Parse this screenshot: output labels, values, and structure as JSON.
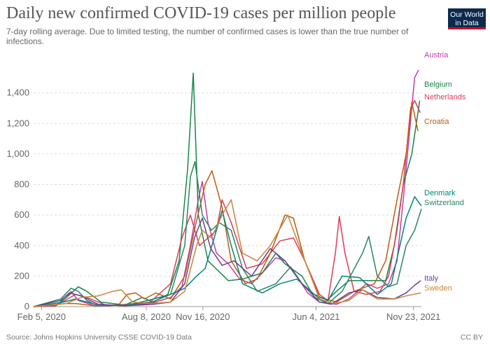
{
  "header": {
    "title": "Daily new confirmed COVID-19 cases per million people",
    "subtitle": "7-day rolling average. Due to limited testing, the number of confirmed cases is lower than the true number of infections.",
    "logo_line1": "Our World",
    "logo_line2": "in Data"
  },
  "footer": {
    "source": "Source: Johns Hopkins University CSSE COVID-19 Data",
    "license": "CC BY"
  },
  "chart_data": {
    "type": "line",
    "title": "Daily new confirmed COVID-19 cases per million people",
    "xlabel": "",
    "ylabel": "",
    "x_range": [
      "2020-01-22",
      "2021-12-07"
    ],
    "ylim": [
      0,
      1550
    ],
    "y_ticks": [
      0,
      200,
      400,
      600,
      800,
      1000,
      1200,
      1400
    ],
    "y_tick_labels": [
      "0",
      "200",
      "400",
      "600",
      "800",
      "1,000",
      "1,200",
      "1,400"
    ],
    "x_ticks": [
      "2020-02-05",
      "2020-08-08",
      "2020-11-16",
      "2021-06-04",
      "2021-11-23"
    ],
    "x_tick_labels": [
      "Feb 5, 2020",
      "Aug 8, 2020",
      "Nov 16, 2020",
      "Jun 4, 2021",
      "Nov 23, 2021"
    ],
    "grid": "horizontal dashed",
    "legend": "right, labels at line ends",
    "series": [
      {
        "name": "Austria",
        "color": "#c53ba7",
        "points": [
          [
            "2020-01-22",
            0
          ],
          [
            "2020-03-01",
            5
          ],
          [
            "2020-03-20",
            60
          ],
          [
            "2020-03-28",
            100
          ],
          [
            "2020-04-10",
            40
          ],
          [
            "2020-05-10",
            5
          ],
          [
            "2020-07-01",
            10
          ],
          [
            "2020-08-15",
            20
          ],
          [
            "2020-09-20",
            60
          ],
          [
            "2020-10-10",
            130
          ],
          [
            "2020-10-25",
            400
          ],
          [
            "2020-11-08",
            700
          ],
          [
            "2020-11-15",
            820
          ],
          [
            "2020-11-25",
            550
          ],
          [
            "2020-12-10",
            350
          ],
          [
            "2020-12-31",
            280
          ],
          [
            "2021-01-20",
            180
          ],
          [
            "2021-02-10",
            150
          ],
          [
            "2021-03-01",
            220
          ],
          [
            "2021-03-25",
            320
          ],
          [
            "2021-04-10",
            300
          ],
          [
            "2021-05-01",
            200
          ],
          [
            "2021-05-20",
            90
          ],
          [
            "2021-06-10",
            30
          ],
          [
            "2021-07-10",
            15
          ],
          [
            "2021-08-01",
            50
          ],
          [
            "2021-09-01",
            150
          ],
          [
            "2021-09-20",
            120
          ],
          [
            "2021-10-10",
            150
          ],
          [
            "2021-10-25",
            300
          ],
          [
            "2021-11-05",
            700
          ],
          [
            "2021-11-15",
            1100
          ],
          [
            "2021-11-25",
            1500
          ],
          [
            "2021-12-02",
            1550
          ]
        ]
      },
      {
        "name": "Belgium",
        "color": "#18864a",
        "points": [
          [
            "2020-01-22",
            0
          ],
          [
            "2020-03-01",
            5
          ],
          [
            "2020-03-20",
            60
          ],
          [
            "2020-04-10",
            130
          ],
          [
            "2020-04-25",
            100
          ],
          [
            "2020-05-20",
            30
          ],
          [
            "2020-07-01",
            10
          ],
          [
            "2020-08-01",
            60
          ],
          [
            "2020-08-20",
            30
          ],
          [
            "2020-09-15",
            80
          ],
          [
            "2020-10-05",
            300
          ],
          [
            "2020-10-20",
            900
          ],
          [
            "2020-10-30",
            1530
          ],
          [
            "2020-11-08",
            600
          ],
          [
            "2020-11-25",
            300
          ],
          [
            "2020-12-31",
            170
          ],
          [
            "2021-01-25",
            180
          ],
          [
            "2021-03-01",
            220
          ],
          [
            "2021-03-25",
            350
          ],
          [
            "2021-04-10",
            280
          ],
          [
            "2021-05-10",
            200
          ],
          [
            "2021-06-01",
            60
          ],
          [
            "2021-06-20",
            30
          ],
          [
            "2021-07-10",
            100
          ],
          [
            "2021-08-01",
            170
          ],
          [
            "2021-09-01",
            170
          ],
          [
            "2021-10-05",
            170
          ],
          [
            "2021-10-20",
            400
          ],
          [
            "2021-11-05",
            800
          ],
          [
            "2021-11-20",
            1000
          ],
          [
            "2021-12-04",
            1350
          ]
        ]
      },
      {
        "name": "Netherlands",
        "color": "#dc3c58",
        "points": [
          [
            "2020-01-22",
            0
          ],
          [
            "2020-03-01",
            5
          ],
          [
            "2020-04-05",
            80
          ],
          [
            "2020-04-25",
            60
          ],
          [
            "2020-06-01",
            5
          ],
          [
            "2020-07-20",
            20
          ],
          [
            "2020-08-15",
            30
          ],
          [
            "2020-09-20",
            150
          ],
          [
            "2020-10-10",
            450
          ],
          [
            "2020-10-25",
            600
          ],
          [
            "2020-11-10",
            400
          ],
          [
            "2020-12-10",
            500
          ],
          [
            "2020-12-20",
            700
          ],
          [
            "2021-01-05",
            550
          ],
          [
            "2021-02-01",
            250
          ],
          [
            "2021-03-01",
            280
          ],
          [
            "2021-04-01",
            430
          ],
          [
            "2021-04-25",
            450
          ],
          [
            "2021-05-15",
            300
          ],
          [
            "2021-06-10",
            80
          ],
          [
            "2021-06-25",
            40
          ],
          [
            "2021-07-08",
            350
          ],
          [
            "2021-07-15",
            590
          ],
          [
            "2021-07-25",
            350
          ],
          [
            "2021-08-10",
            100
          ],
          [
            "2021-09-01",
            80
          ],
          [
            "2021-09-25",
            100
          ],
          [
            "2021-10-10",
            200
          ],
          [
            "2021-10-25",
            500
          ],
          [
            "2021-11-05",
            800
          ],
          [
            "2021-11-18",
            1300
          ],
          [
            "2021-11-25",
            1350
          ],
          [
            "2021-12-05",
            1270
          ]
        ]
      },
      {
        "name": "Croatia",
        "color": "#c15a0d",
        "points": [
          [
            "2020-01-22",
            0
          ],
          [
            "2020-03-20",
            20
          ],
          [
            "2020-04-05",
            20
          ],
          [
            "2020-05-10",
            5
          ],
          [
            "2020-06-20",
            10
          ],
          [
            "2020-07-05",
            80
          ],
          [
            "2020-07-20",
            90
          ],
          [
            "2020-08-05",
            50
          ],
          [
            "2020-08-25",
            90
          ],
          [
            "2020-09-20",
            50
          ],
          [
            "2020-10-15",
            200
          ],
          [
            "2020-11-01",
            500
          ],
          [
            "2020-11-20",
            800
          ],
          [
            "2020-12-02",
            890
          ],
          [
            "2020-12-20",
            650
          ],
          [
            "2021-01-05",
            300
          ],
          [
            "2021-01-30",
            150
          ],
          [
            "2021-02-20",
            180
          ],
          [
            "2021-03-15",
            350
          ],
          [
            "2021-04-10",
            600
          ],
          [
            "2021-04-25",
            580
          ],
          [
            "2021-05-15",
            300
          ],
          [
            "2021-06-10",
            60
          ],
          [
            "2021-07-10",
            30
          ],
          [
            "2021-08-10",
            100
          ],
          [
            "2021-09-15",
            150
          ],
          [
            "2021-10-05",
            300
          ],
          [
            "2021-10-25",
            700
          ],
          [
            "2021-11-10",
            1000
          ],
          [
            "2021-11-20",
            1340
          ],
          [
            "2021-12-01",
            1150
          ]
        ]
      },
      {
        "name": "Denmark",
        "color": "#00847e",
        "points": [
          [
            "2020-01-22",
            0
          ],
          [
            "2020-03-15",
            30
          ],
          [
            "2020-04-05",
            50
          ],
          [
            "2020-05-10",
            15
          ],
          [
            "2020-07-01",
            5
          ],
          [
            "2020-08-10",
            40
          ],
          [
            "2020-09-20",
            80
          ],
          [
            "2020-10-15",
            120
          ],
          [
            "2020-11-05",
            200
          ],
          [
            "2020-11-20",
            250
          ],
          [
            "2020-12-10",
            500
          ],
          [
            "2020-12-20",
            630
          ],
          [
            "2021-01-05",
            400
          ],
          [
            "2021-01-25",
            150
          ],
          [
            "2021-03-01",
            90
          ],
          [
            "2021-04-01",
            150
          ],
          [
            "2021-05-01",
            180
          ],
          [
            "2021-06-01",
            80
          ],
          [
            "2021-06-25",
            40
          ],
          [
            "2021-07-20",
            200
          ],
          [
            "2021-08-20",
            190
          ],
          [
            "2021-09-20",
            80
          ],
          [
            "2021-10-15",
            150
          ],
          [
            "2021-10-30",
            400
          ],
          [
            "2021-11-10",
            580
          ],
          [
            "2021-11-25",
            720
          ],
          [
            "2021-12-07",
            660
          ]
        ]
      },
      {
        "name": "Switzerland",
        "color": "#2c8465",
        "points": [
          [
            "2020-01-22",
            0
          ],
          [
            "2020-03-10",
            50
          ],
          [
            "2020-03-28",
            120
          ],
          [
            "2020-04-10",
            100
          ],
          [
            "2020-04-25",
            40
          ],
          [
            "2020-05-15",
            5
          ],
          [
            "2020-07-01",
            10
          ],
          [
            "2020-08-15",
            25
          ],
          [
            "2020-09-20",
            80
          ],
          [
            "2020-10-15",
            400
          ],
          [
            "2020-10-25",
            850
          ],
          [
            "2020-11-02",
            950
          ],
          [
            "2020-11-15",
            600
          ],
          [
            "2020-12-01",
            500
          ],
          [
            "2020-12-15",
            550
          ],
          [
            "2021-01-05",
            500
          ],
          [
            "2021-01-25",
            250
          ],
          [
            "2021-02-20",
            100
          ],
          [
            "2021-03-25",
            150
          ],
          [
            "2021-04-20",
            260
          ],
          [
            "2021-05-10",
            150
          ],
          [
            "2021-06-10",
            50
          ],
          [
            "2021-06-25",
            20
          ],
          [
            "2021-07-20",
            100
          ],
          [
            "2021-08-25",
            350
          ],
          [
            "2021-09-05",
            460
          ],
          [
            "2021-09-20",
            200
          ],
          [
            "2021-10-10",
            130
          ],
          [
            "2021-10-25",
            150
          ],
          [
            "2021-11-10",
            400
          ],
          [
            "2021-11-25",
            500
          ],
          [
            "2021-12-07",
            640
          ]
        ]
      },
      {
        "name": "Italy",
        "color": "#6d3e91",
        "points": [
          [
            "2020-01-22",
            0
          ],
          [
            "2020-03-10",
            40
          ],
          [
            "2020-03-25",
            90
          ],
          [
            "2020-04-15",
            70
          ],
          [
            "2020-05-15",
            15
          ],
          [
            "2020-07-01",
            5
          ],
          [
            "2020-08-20",
            15
          ],
          [
            "2020-09-20",
            30
          ],
          [
            "2020-10-15",
            150
          ],
          [
            "2020-11-01",
            450
          ],
          [
            "2020-11-15",
            580
          ],
          [
            "2020-11-30",
            380
          ],
          [
            "2020-12-20",
            270
          ],
          [
            "2021-01-10",
            300
          ],
          [
            "2021-02-10",
            200
          ],
          [
            "2021-03-15",
            380
          ],
          [
            "2021-04-10",
            300
          ],
          [
            "2021-05-10",
            150
          ],
          [
            "2021-06-10",
            30
          ],
          [
            "2021-07-01",
            15
          ],
          [
            "2021-08-01",
            90
          ],
          [
            "2021-08-25",
            110
          ],
          [
            "2021-09-20",
            60
          ],
          [
            "2021-10-20",
            50
          ],
          [
            "2021-11-10",
            90
          ],
          [
            "2021-11-25",
            140
          ],
          [
            "2021-12-06",
            170
          ]
        ]
      },
      {
        "name": "Sweden",
        "color": "#c4863b",
        "points": [
          [
            "2020-01-22",
            0
          ],
          [
            "2020-03-20",
            20
          ],
          [
            "2020-04-15",
            60
          ],
          [
            "2020-05-15",
            70
          ],
          [
            "2020-06-10",
            100
          ],
          [
            "2020-06-25",
            110
          ],
          [
            "2020-07-15",
            30
          ],
          [
            "2020-08-15",
            20
          ],
          [
            "2020-09-20",
            30
          ],
          [
            "2020-10-15",
            100
          ],
          [
            "2020-11-05",
            400
          ],
          [
            "2020-11-15",
            500
          ],
          [
            "2020-12-01",
            450
          ],
          [
            "2020-12-20",
            600
          ],
          [
            "2021-01-05",
            700
          ],
          [
            "2021-01-25",
            350
          ],
          [
            "2021-02-20",
            300
          ],
          [
            "2021-03-15",
            400
          ],
          [
            "2021-04-15",
            600
          ],
          [
            "2021-05-10",
            350
          ],
          [
            "2021-06-10",
            50
          ],
          [
            "2021-07-05",
            20
          ],
          [
            "2021-08-01",
            40
          ],
          [
            "2021-08-25",
            110
          ],
          [
            "2021-09-20",
            50
          ],
          [
            "2021-10-20",
            50
          ],
          [
            "2021-11-10",
            70
          ],
          [
            "2021-12-06",
            90
          ]
        ]
      }
    ]
  }
}
